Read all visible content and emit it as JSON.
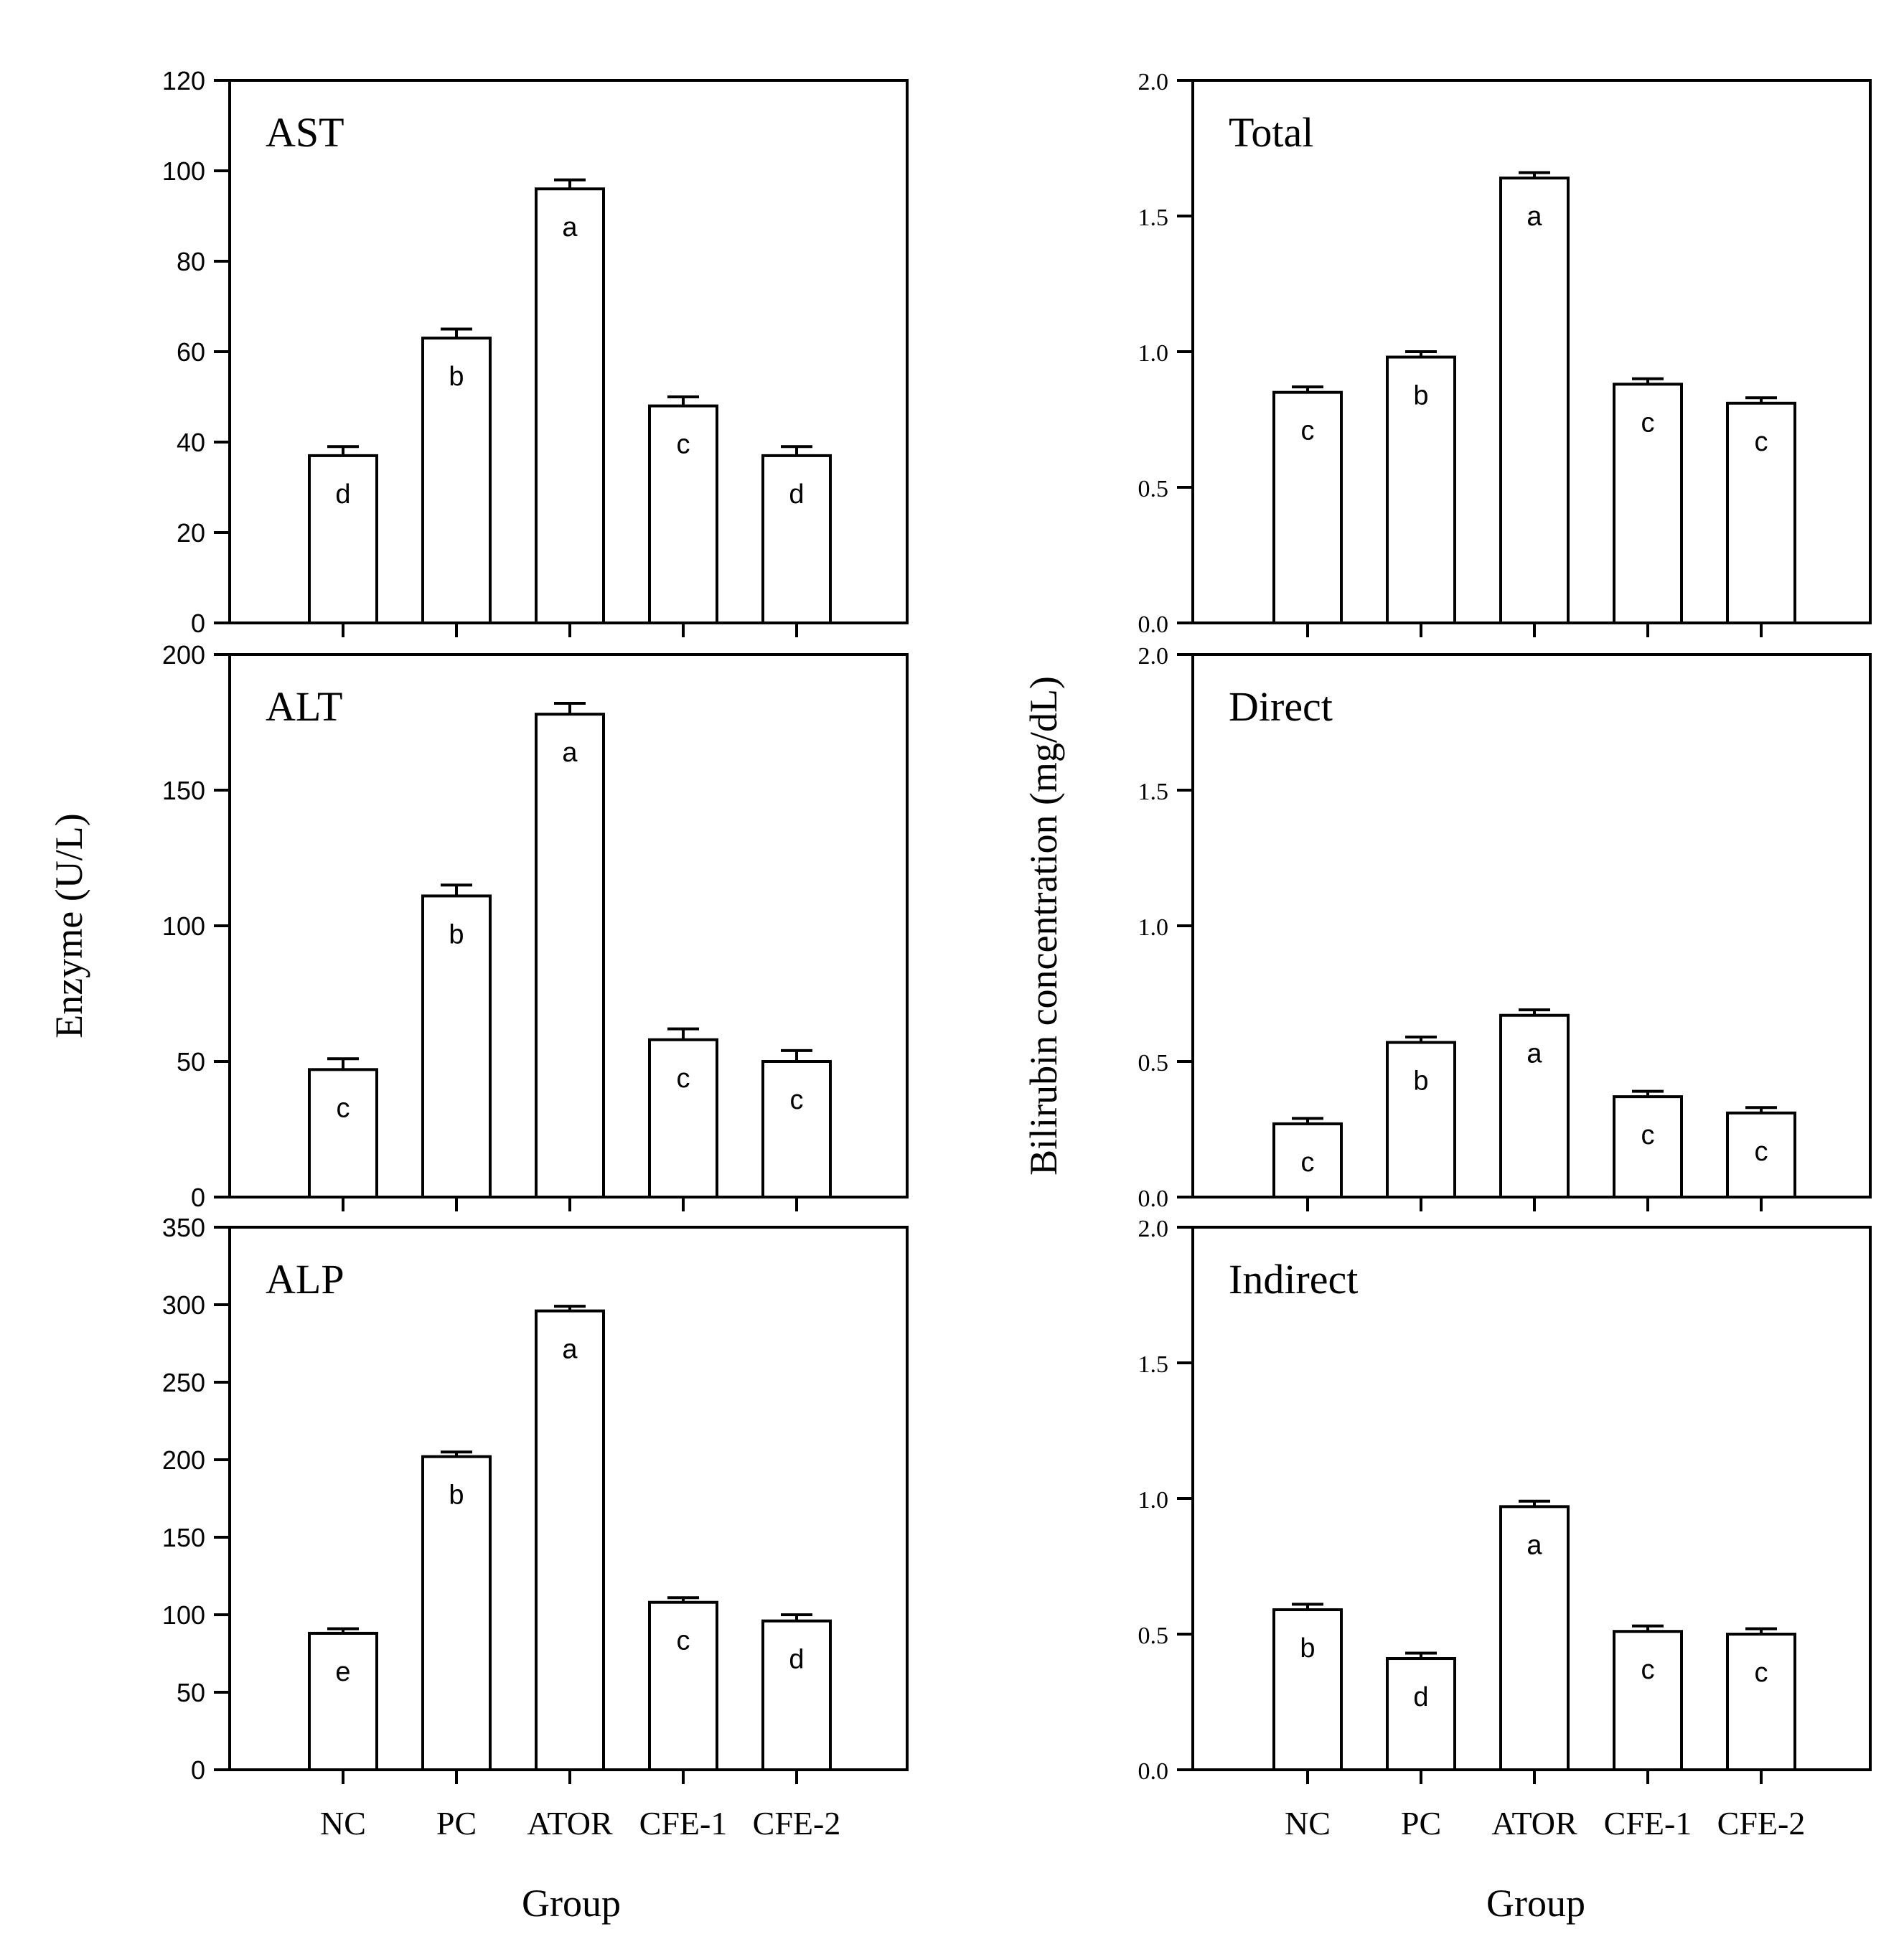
{
  "chart_data": [
    {
      "type": "bar",
      "panel": "AST",
      "title": "AST",
      "categories": [
        "NC",
        "PC",
        "ATOR",
        "CFE-1",
        "CFE-2"
      ],
      "values": [
        37,
        63,
        96,
        48,
        37
      ],
      "errors": [
        2,
        2,
        2,
        2,
        2
      ],
      "letters": [
        "d",
        "b",
        "a",
        "c",
        "d"
      ],
      "ylim": [
        0,
        120
      ],
      "yticks": [
        0,
        20,
        40,
        60,
        80,
        100,
        120
      ],
      "ytick_labels": [
        "0",
        "20",
        "40",
        "60",
        "80",
        "100",
        "120"
      ],
      "xlabel": "",
      "ylabel": ""
    },
    {
      "type": "bar",
      "panel": "ALT",
      "title": "ALT",
      "categories": [
        "NC",
        "PC",
        "ATOR",
        "CFE-1",
        "CFE-2"
      ],
      "values": [
        47,
        111,
        178,
        58,
        50
      ],
      "errors": [
        4,
        4,
        4,
        4,
        4
      ],
      "letters": [
        "c",
        "b",
        "a",
        "c",
        "c"
      ],
      "ylim": [
        0,
        200
      ],
      "yticks": [
        0,
        50,
        100,
        150,
        200
      ],
      "ytick_labels": [
        "0",
        "50",
        "100",
        "150",
        "200"
      ],
      "xlabel": "",
      "ylabel": ""
    },
    {
      "type": "bar",
      "panel": "ALP",
      "title": "ALP",
      "categories": [
        "NC",
        "PC",
        "ATOR",
        "CFE-1",
        "CFE-2"
      ],
      "values": [
        88,
        202,
        296,
        108,
        96
      ],
      "errors": [
        3,
        3,
        3,
        3,
        4
      ],
      "letters": [
        "e",
        "b",
        "a",
        "c",
        "d"
      ],
      "ylim": [
        0,
        350
      ],
      "yticks": [
        0,
        50,
        100,
        150,
        200,
        250,
        300,
        350
      ],
      "ytick_labels": [
        "0",
        "50",
        "100",
        "150",
        "200",
        "250",
        "300",
        "350"
      ],
      "xlabel": "Group",
      "ylabel": ""
    },
    {
      "type": "bar",
      "panel": "Total",
      "title": "Total",
      "categories": [
        "NC",
        "PC",
        "ATOR",
        "CFE-1",
        "CFE-2"
      ],
      "values": [
        0.85,
        0.98,
        1.64,
        0.88,
        0.81
      ],
      "errors": [
        0.02,
        0.02,
        0.02,
        0.02,
        0.02
      ],
      "letters": [
        "c",
        "b",
        "a",
        "c",
        "c"
      ],
      "ylim": [
        0,
        2
      ],
      "yticks": [
        0,
        0.5,
        1,
        1.5,
        2
      ],
      "ytick_labels": [
        "0.0",
        "0.5",
        "1.0",
        "1.5",
        "2.0"
      ],
      "xlabel": "",
      "ylabel": ""
    },
    {
      "type": "bar",
      "panel": "Direct",
      "title": "Direct",
      "categories": [
        "NC",
        "PC",
        "ATOR",
        "CFE-1",
        "CFE-2"
      ],
      "values": [
        0.27,
        0.57,
        0.67,
        0.37,
        0.31
      ],
      "errors": [
        0.02,
        0.02,
        0.02,
        0.02,
        0.02
      ],
      "letters": [
        "c",
        "b",
        "a",
        "c",
        "c"
      ],
      "ylim": [
        0,
        2
      ],
      "yticks": [
        0,
        0.5,
        1,
        1.5,
        2
      ],
      "ytick_labels": [
        "0.0",
        "0.5",
        "1.0",
        "1.5",
        "2.0"
      ],
      "xlabel": "",
      "ylabel": ""
    },
    {
      "type": "bar",
      "panel": "Indirect",
      "title": "Indirect",
      "categories": [
        "NC",
        "PC",
        "ATOR",
        "CFE-1",
        "CFE-2"
      ],
      "values": [
        0.59,
        0.41,
        0.97,
        0.51,
        0.5
      ],
      "errors": [
        0.02,
        0.02,
        0.02,
        0.02,
        0.02
      ],
      "letters": [
        "b",
        "d",
        "a",
        "c",
        "c"
      ],
      "ylim": [
        0,
        2
      ],
      "yticks": [
        0,
        0.5,
        1,
        1.5,
        2
      ],
      "ytick_labels": [
        "0.0",
        "0.5",
        "1.0",
        "1.5",
        "2.0"
      ],
      "xlabel": "Group",
      "ylabel": ""
    }
  ],
  "figure": {
    "left_ylabel": "Enzyme  (U/L)",
    "right_ylabel": "Bilirubin concentration (mg/dL)",
    "left_xlabel": "Group",
    "right_xlabel": "Group"
  }
}
